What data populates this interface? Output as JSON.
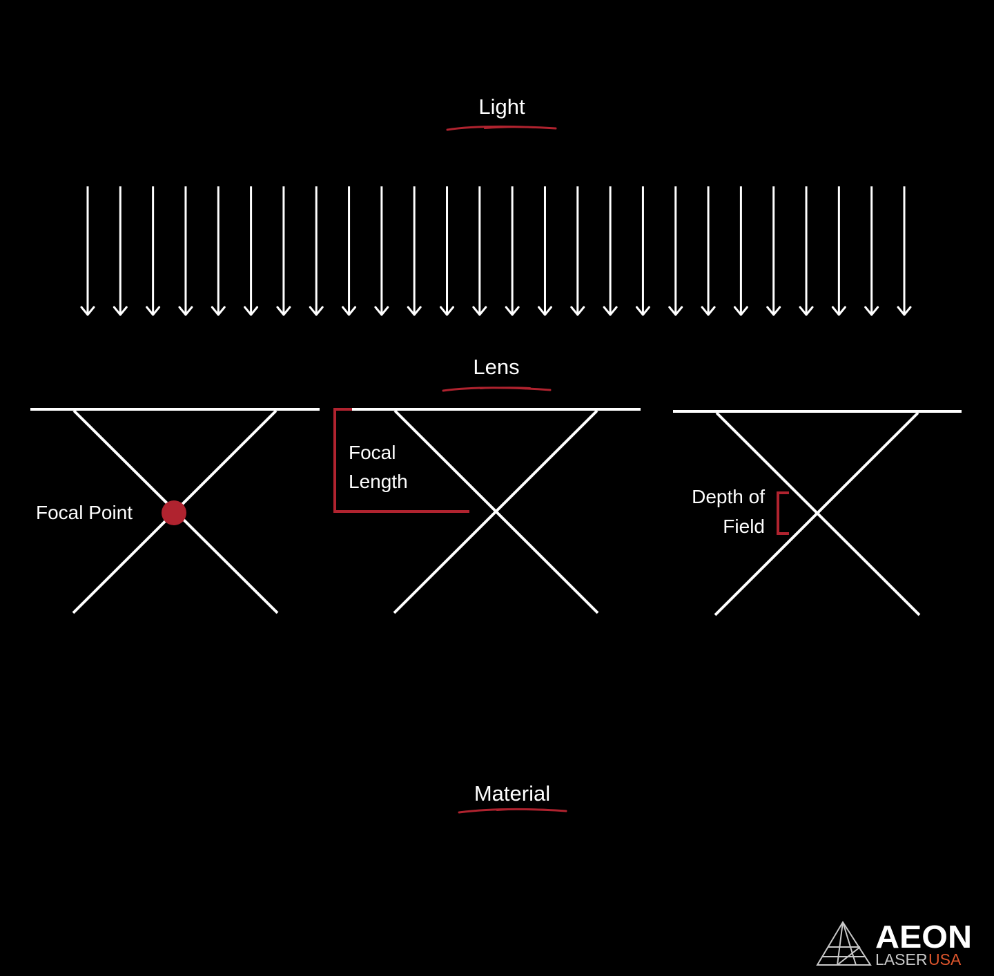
{
  "colors": {
    "background": "#000000",
    "line": "#ffffff",
    "accent": "#b0232f",
    "brand_accent": "#e0562c",
    "logo_mark": "#c9c9c9"
  },
  "sections": {
    "light": "Light",
    "lens": "Lens",
    "material": "Material"
  },
  "light_rays": {
    "count": 26,
    "icon": "down-arrow-icon"
  },
  "panels": [
    {
      "label_lines": [
        "Focal Point"
      ],
      "marker": "focal-point-dot"
    },
    {
      "label_lines": [
        "Focal",
        "Length"
      ],
      "marker": "focal-length-bracket"
    },
    {
      "label_lines": [
        "Depth of",
        "Field"
      ],
      "marker": "depth-of-field-bracket"
    }
  ],
  "brand": {
    "name": "AEON",
    "sub_left": "LASER",
    "sub_right": "USA",
    "icon": "pyramid-logo-icon"
  }
}
